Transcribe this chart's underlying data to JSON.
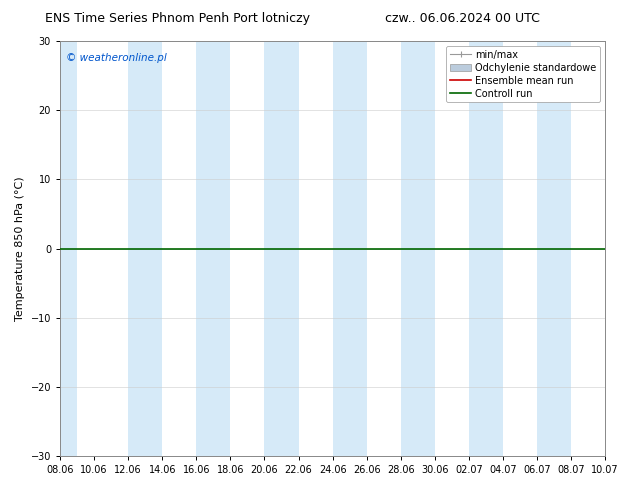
{
  "title_left": "ENS Time Series Phnom Penh Port lotniczy",
  "title_right": "czw.. 06.06.2024 00 UTC",
  "ylabel": "Temperature 850 hPa (°C)",
  "xlim_start": 0,
  "xlim_end": 32,
  "ylim": [
    -30,
    30
  ],
  "yticks": [
    -30,
    -20,
    -10,
    0,
    10,
    20,
    30
  ],
  "xtick_labels": [
    "08.06",
    "10.06",
    "12.06",
    "14.06",
    "16.06",
    "18.06",
    "20.06",
    "22.06",
    "24.06",
    "26.06",
    "28.06",
    "30.06",
    "02.07",
    "04.07",
    "06.07",
    "08.07",
    "10.07"
  ],
  "watermark": "© weatheronline.pl",
  "watermark_color": "#0055cc",
  "background_color": "#ffffff",
  "plot_bg_color": "#ffffff",
  "shaded_bands": [
    {
      "x_start": 0.0,
      "x_end": 1.0,
      "color": "#d6eaf8"
    },
    {
      "x_start": 4.0,
      "x_end": 6.0,
      "color": "#d6eaf8"
    },
    {
      "x_start": 8.0,
      "x_end": 10.0,
      "color": "#d6eaf8"
    },
    {
      "x_start": 12.0,
      "x_end": 14.0,
      "color": "#d6eaf8"
    },
    {
      "x_start": 16.0,
      "x_end": 18.0,
      "color": "#d6eaf8"
    },
    {
      "x_start": 20.0,
      "x_end": 22.0,
      "color": "#d6eaf8"
    },
    {
      "x_start": 24.0,
      "x_end": 26.0,
      "color": "#d6eaf8"
    },
    {
      "x_start": 28.0,
      "x_end": 30.0,
      "color": "#d6eaf8"
    }
  ],
  "hline_y": 0,
  "hline_color": "#006600",
  "hline_linewidth": 1.2,
  "legend_entries": [
    {
      "label": "min/max",
      "color": "#999999",
      "type": "errorbar"
    },
    {
      "label": "Odchylenie standardowe",
      "color": "#bbccdd",
      "type": "band"
    },
    {
      "label": "Ensemble mean run",
      "color": "#cc0000",
      "type": "line"
    },
    {
      "label": "Controll run",
      "color": "#006600",
      "type": "line"
    }
  ],
  "grid_color": "#cccccc",
  "grid_alpha": 0.8,
  "title_fontsize": 9,
  "axis_fontsize": 8,
  "tick_fontsize": 7,
  "legend_fontsize": 7
}
